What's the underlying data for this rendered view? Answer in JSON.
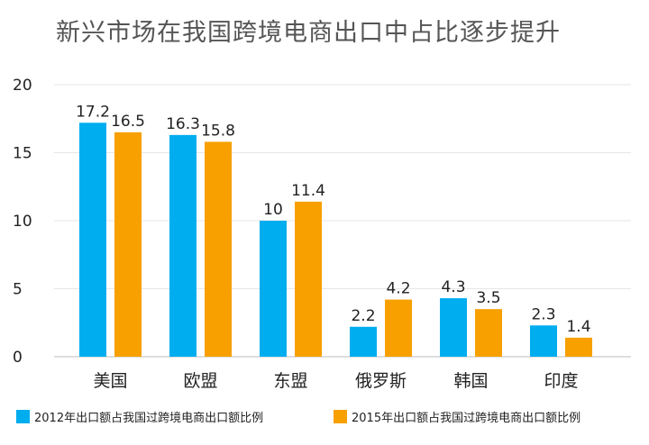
{
  "chart_data": {
    "type": "bar",
    "title": "新兴市场在我国跨境电商出口中占比逐步提升",
    "xlabel": "",
    "ylabel": "",
    "categories": [
      "美国",
      "欧盟",
      "东盟",
      "俄罗斯",
      "韩国",
      "印度"
    ],
    "series": [
      {
        "name": "2012年出口额占我国过跨境电商出口额比例",
        "color": "#00ADEF",
        "values": [
          17.2,
          16.3,
          10,
          2.2,
          4.3,
          2.3
        ],
        "labels": [
          "17.2",
          "16.3",
          "10",
          "2.2",
          "4.3",
          "2.3"
        ]
      },
      {
        "name": "2015年出口额占我国过跨境电商出口额比例",
        "color": "#F7A000",
        "values": [
          16.5,
          15.8,
          11.4,
          4.2,
          3.5,
          1.4
        ],
        "labels": [
          "16.5",
          "15.8",
          "11.4",
          "4.2",
          "3.5",
          "1.4"
        ]
      }
    ],
    "ylim": [
      0,
      20
    ],
    "yticks": [
      0,
      5,
      10,
      15,
      20
    ],
    "grid": true,
    "legend": "bottom"
  }
}
